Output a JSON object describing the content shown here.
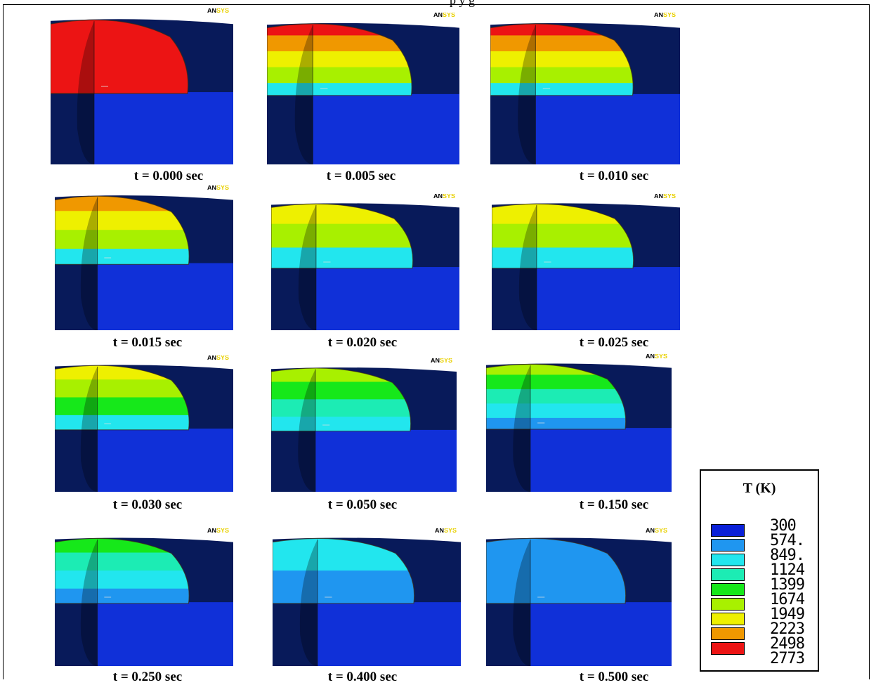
{
  "header_fragment": "p            y    g",
  "colors": {
    "background_dark": "#081a5a",
    "substrate": "#1030d8"
  },
  "legend": {
    "title": "T (K)",
    "items": [
      {
        "label": "300",
        "color": "#0a20d8"
      },
      {
        "label": "574.",
        "color": "#1f96f0"
      },
      {
        "label": "849.",
        "color": "#22e6ee"
      },
      {
        "label": "1124",
        "color": "#1cecb4"
      },
      {
        "label": "1399",
        "color": "#16e81a"
      },
      {
        "label": "1674",
        "color": "#a8f000"
      },
      {
        "label": "1949",
        "color": "#eef000"
      },
      {
        "label": "2223",
        "color": "#f09800"
      },
      {
        "label": "2498",
        "color": "#ec1414"
      },
      {
        "label": "2773",
        "color": "#ffffff"
      }
    ]
  },
  "panels": [
    {
      "caption": "t = 0.000 sec",
      "bands": [
        "#ec1414"
      ]
    },
    {
      "caption": "t = 0.005 sec",
      "bands": [
        "#ec1414",
        "#f09800",
        "#eef000",
        "#a8f000",
        "#22e6ee"
      ]
    },
    {
      "caption": "t = 0.010 sec",
      "bands": [
        "#ec1414",
        "#f09800",
        "#eef000",
        "#a8f000",
        "#22e6ee"
      ]
    },
    {
      "caption": "t = 0.015 sec",
      "bands": [
        "#f09800",
        "#eef000",
        "#a8f000",
        "#22e6ee"
      ]
    },
    {
      "caption": "t = 0.020 sec",
      "bands": [
        "#eef000",
        "#a8f000",
        "#22e6ee"
      ]
    },
    {
      "caption": "t = 0.025 sec",
      "bands": [
        "#eef000",
        "#a8f000",
        "#22e6ee"
      ]
    },
    {
      "caption": "t = 0.030 sec",
      "bands": [
        "#eef000",
        "#a8f000",
        "#16e81a",
        "#22e6ee"
      ]
    },
    {
      "caption": "t = 0.050 sec",
      "bands": [
        "#a8f000",
        "#16e81a",
        "#1cecb4",
        "#22e6ee"
      ]
    },
    {
      "caption": "t = 0.150 sec",
      "bands": [
        "#a8f000",
        "#16e81a",
        "#1cecb4",
        "#22e6ee",
        "#1f96f0"
      ]
    },
    {
      "caption": "t = 0.250 sec",
      "bands": [
        "#16e81a",
        "#1cecb4",
        "#22e6ee",
        "#1f96f0"
      ]
    },
    {
      "caption": "t = 0.400 sec",
      "bands": [
        "#22e6ee",
        "#1f96f0"
      ]
    },
    {
      "caption": "t = 0.500 sec",
      "bands": [
        "#1f96f0"
      ]
    }
  ],
  "badge": {
    "prefix": "AN",
    "suffix": "SYS"
  }
}
